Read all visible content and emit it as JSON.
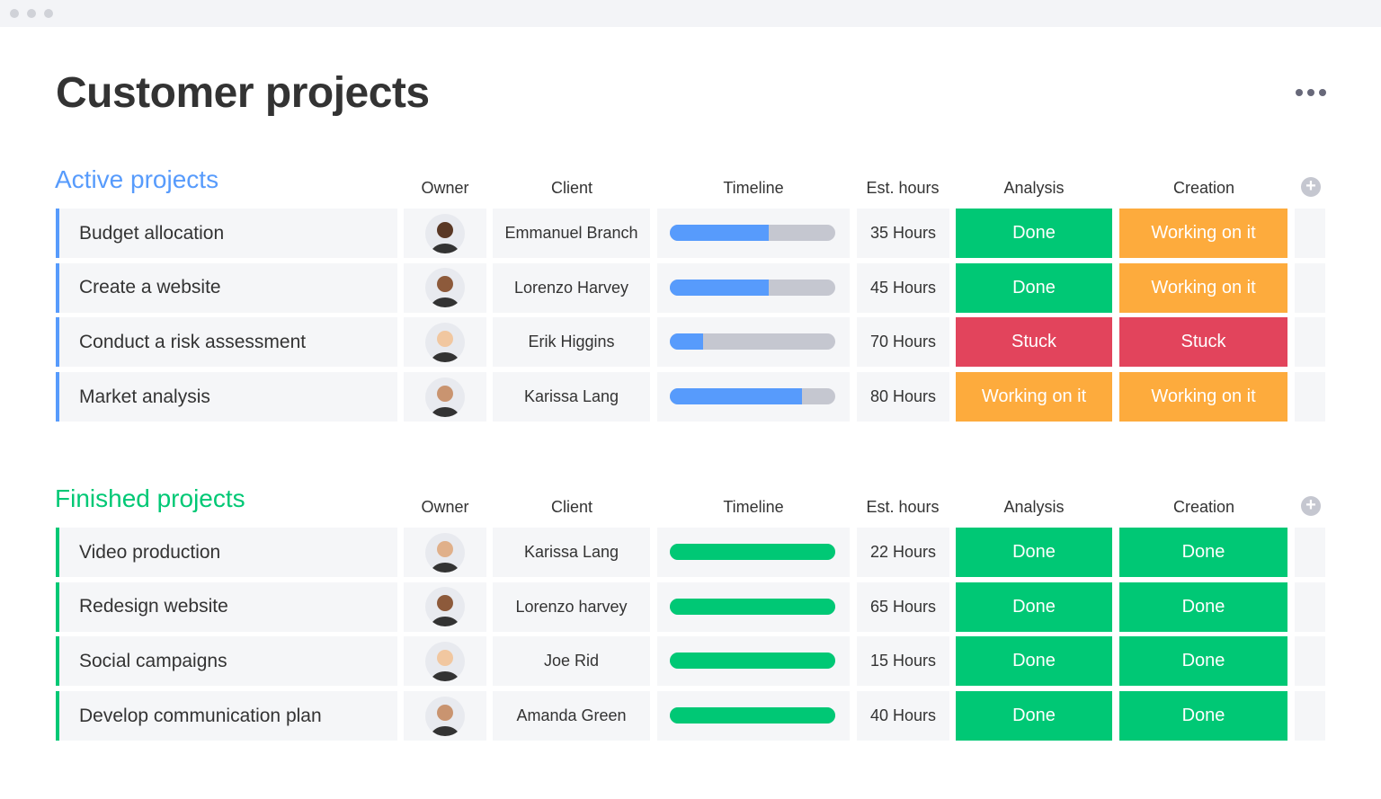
{
  "title": "Customer projects",
  "groups": [
    {
      "title": "Active projects",
      "color": "#579bfc",
      "timeline_color": "#579bfc",
      "columns": [
        "Owner",
        "Client",
        "Timeline",
        "Est. hours",
        "Analysis",
        "Creation"
      ],
      "rows": [
        {
          "name": "Budget allocation",
          "client": "Emmanuel Branch",
          "timeline": 0.6,
          "hours": "35 Hours",
          "analysis": {
            "label": "Done",
            "color": "#00c875"
          },
          "creation": {
            "label": "Working on it",
            "color": "#fdab3d"
          }
        },
        {
          "name": "Create a website",
          "client": "Lorenzo Harvey",
          "timeline": 0.6,
          "hours": "45 Hours",
          "analysis": {
            "label": "Done",
            "color": "#00c875"
          },
          "creation": {
            "label": "Working on it",
            "color": "#fdab3d"
          }
        },
        {
          "name": "Conduct a risk assessment",
          "client": "Erik Higgins",
          "timeline": 0.2,
          "hours": "70 Hours",
          "analysis": {
            "label": "Stuck",
            "color": "#e2445c"
          },
          "creation": {
            "label": "Stuck",
            "color": "#e2445c"
          }
        },
        {
          "name": "Market analysis",
          "client": "Karissa Lang",
          "timeline": 0.8,
          "hours": "80 Hours",
          "analysis": {
            "label": "Working on it",
            "color": "#fdab3d"
          },
          "creation": {
            "label": "Working on it",
            "color": "#fdab3d"
          }
        }
      ]
    },
    {
      "title": "Finished projects",
      "color": "#00c875",
      "timeline_color": "#00c875",
      "columns": [
        "Owner",
        "Client",
        "Timeline",
        "Est. hours",
        "Analysis",
        "Creation"
      ],
      "rows": [
        {
          "name": "Video production",
          "client": "Karissa Lang",
          "timeline": 1,
          "hours": "22 Hours",
          "analysis": {
            "label": "Done",
            "color": "#00c875"
          },
          "creation": {
            "label": "Done",
            "color": "#00c875"
          }
        },
        {
          "name": "Redesign website",
          "client": "Lorenzo harvey",
          "timeline": 1,
          "hours": "65 Hours",
          "analysis": {
            "label": "Done",
            "color": "#00c875"
          },
          "creation": {
            "label": "Done",
            "color": "#00c875"
          }
        },
        {
          "name": "Social campaigns",
          "client": "Joe Rid",
          "timeline": 1,
          "hours": "15 Hours",
          "analysis": {
            "label": "Done",
            "color": "#00c875"
          },
          "creation": {
            "label": "Done",
            "color": "#00c875"
          }
        },
        {
          "name": "Develop communication plan",
          "client": "Amanda Green",
          "timeline": 1,
          "hours": "40 Hours",
          "analysis": {
            "label": "Done",
            "color": "#00c875"
          },
          "creation": {
            "label": "Done",
            "color": "#00c875"
          }
        }
      ]
    }
  ]
}
